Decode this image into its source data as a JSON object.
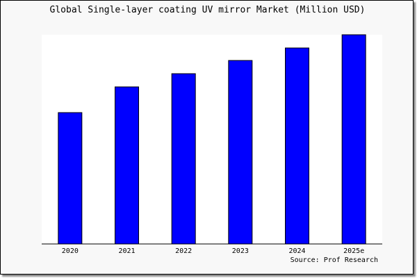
{
  "chart_data": {
    "type": "bar",
    "title": "Global Single-layer coating UV mirror Market (Million USD)",
    "categories": [
      "2020",
      "2021",
      "2022",
      "2023",
      "2024",
      "2025e"
    ],
    "values": [
      189,
      226,
      245,
      264,
      282,
      301
    ],
    "ylim": [
      0,
      301
    ],
    "xlabel": "",
    "ylabel": "",
    "grid": false,
    "bar_color": "#0000ff",
    "source": "Source: Prof Research"
  }
}
